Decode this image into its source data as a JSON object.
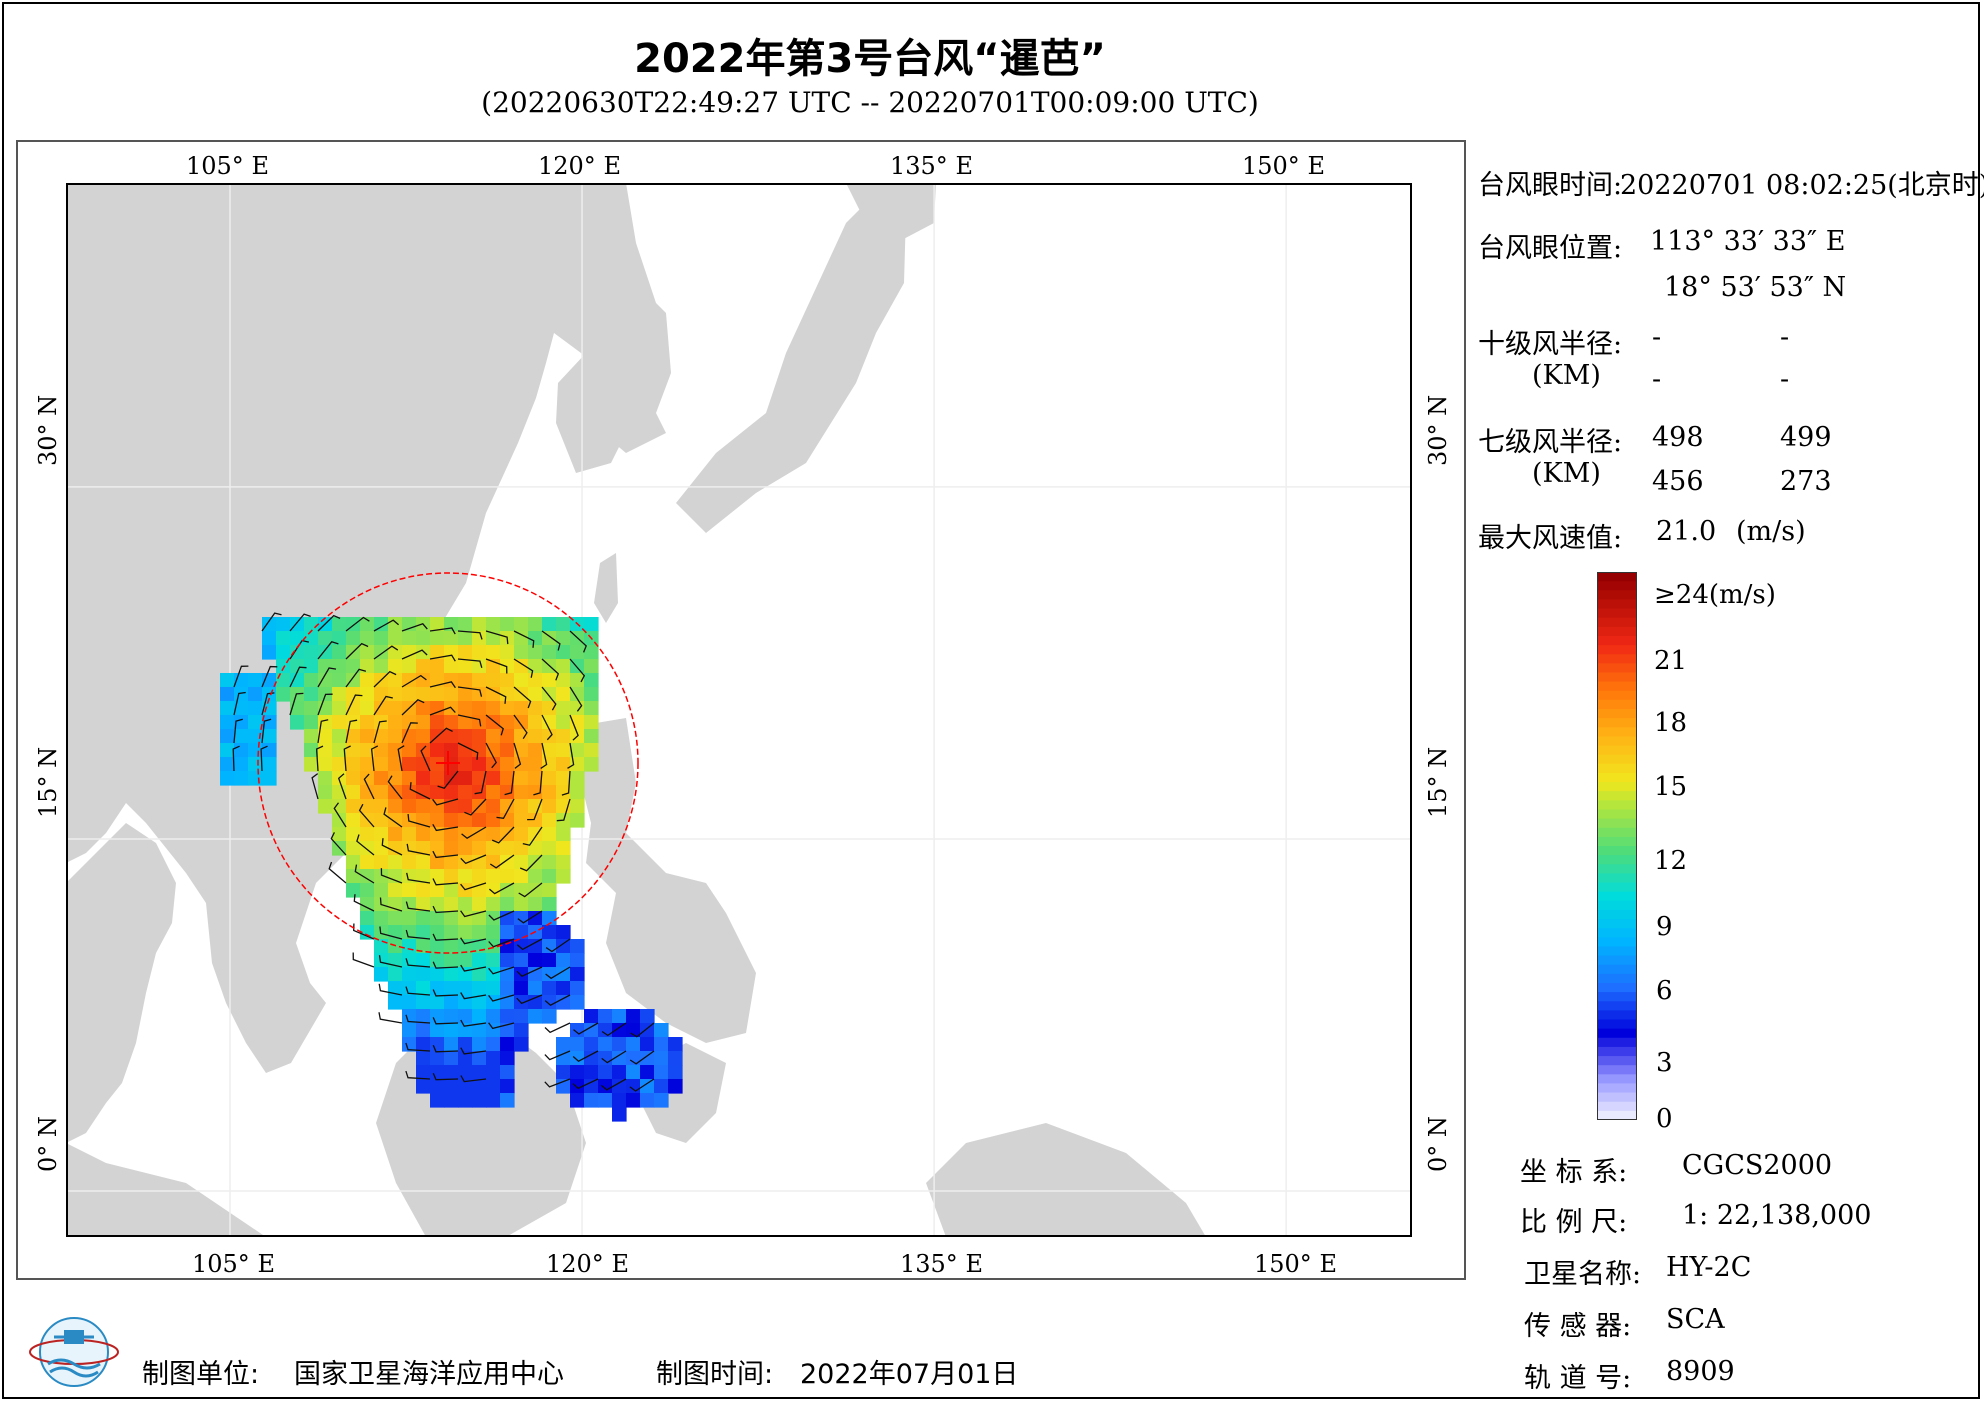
{
  "title": "2022年第3号台风“暹芭”",
  "subtitle": "(20220630T22:49:27 UTC -- 20220701T00:09:00 UTC)",
  "map": {
    "lon_labels": [
      "105° E",
      "120° E",
      "135° E",
      "150° E"
    ],
    "lat_labels": [
      "30° N",
      "15° N",
      "0° N"
    ],
    "colors": {
      "land": "#d3d3d3",
      "ocean": "#ffffff",
      "gridline": "#eeeeee",
      "wind_circle": "#ff0000"
    }
  },
  "info": {
    "eye_time_label": "台风眼时间:",
    "eye_time_value": "20220701 08:02:25(北京时)",
    "eye_pos_label": "台风眼位置:",
    "eye_lon": "113° 33′ 33″ E",
    "eye_lat": "18° 53′ 53″ N",
    "r10_label": "十级风半径:",
    "r10_values": [
      "-",
      "-",
      "-",
      "-"
    ],
    "km_label": "(KM)",
    "r7_label": "七级风半径:",
    "r7_values": [
      "498",
      "499",
      "456",
      "273"
    ],
    "max_wind_label": "最大风速值:",
    "max_wind_value": "21.0",
    "max_wind_unit": "(m/s)"
  },
  "colorbar": {
    "ticks": [
      "≥24(m/s)",
      "21",
      "18",
      "15",
      "12",
      "9",
      "6",
      "3",
      "0"
    ]
  },
  "meta": {
    "crs_label": "坐 标 系:",
    "crs_value": "CGCS2000",
    "scale_label": "比 例 尺:",
    "scale_value": "1: 22,138,000",
    "sat_label": "卫星名称:",
    "sat_value": "HY-2C",
    "sensor_label": "传 感 器:",
    "sensor_value": "SCA",
    "orbit_label": "轨 道 号:",
    "orbit_value": "8909"
  },
  "footer": {
    "unit_label": "制图单位:",
    "unit_value": "国家卫星海洋应用中心",
    "date_label": "制图时间:",
    "date_value": "2022年07月01日"
  }
}
